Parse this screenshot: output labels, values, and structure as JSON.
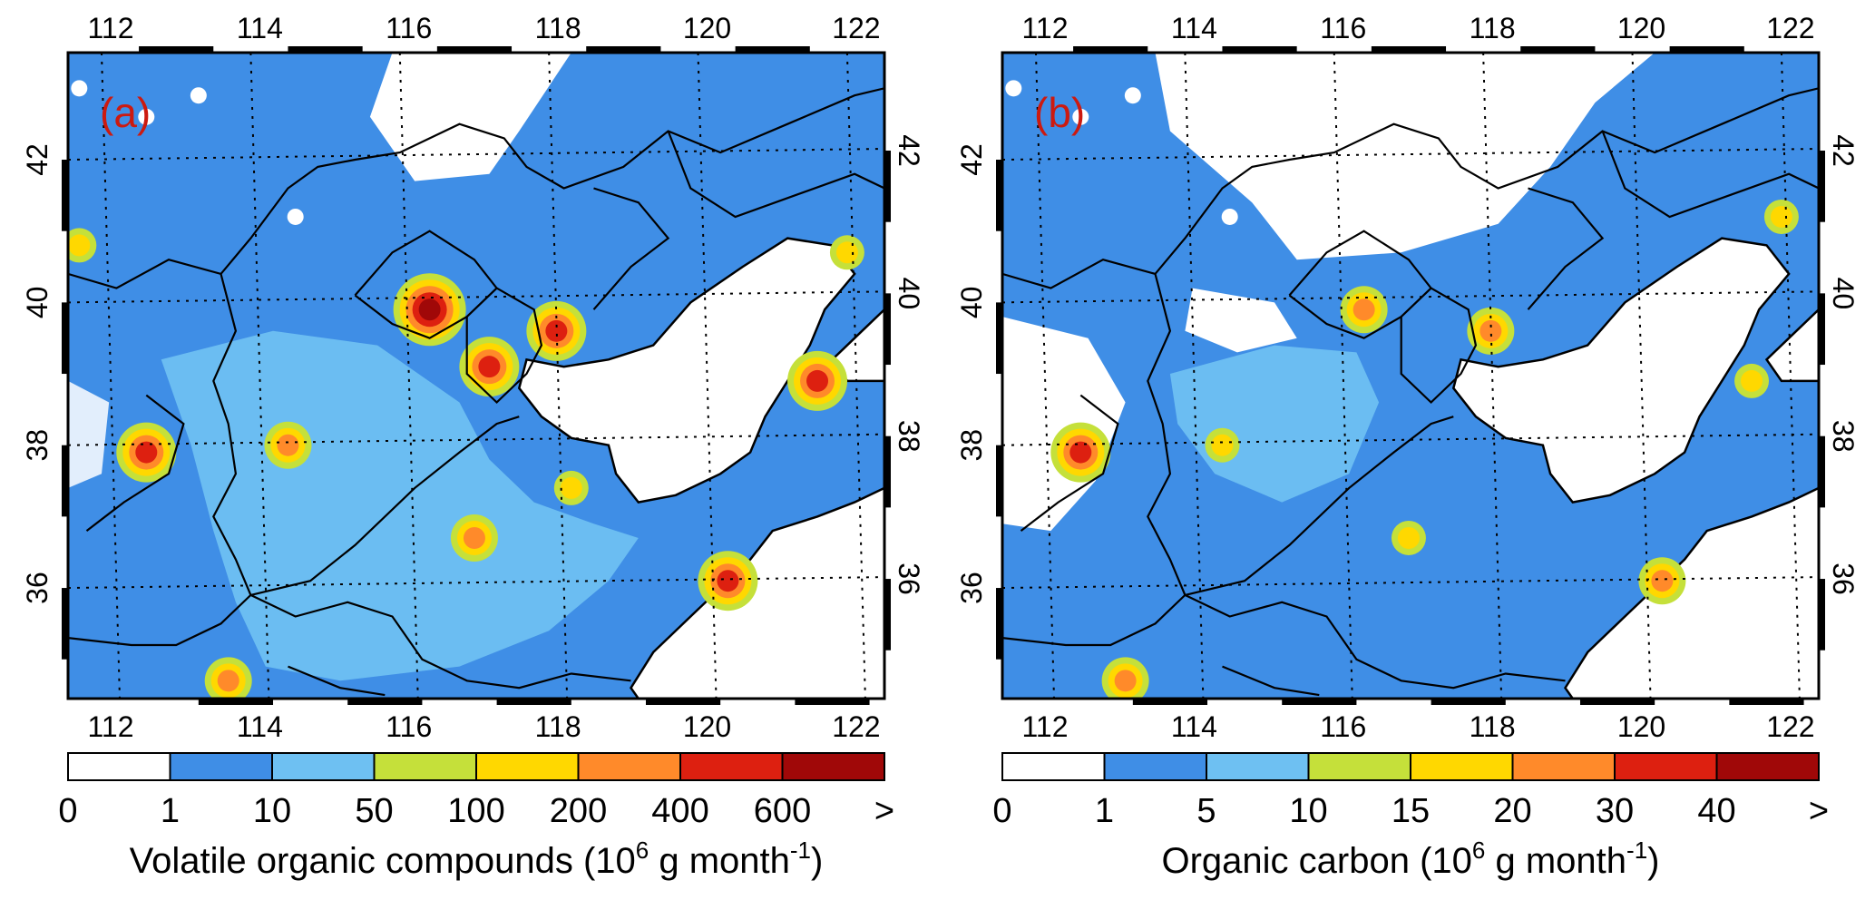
{
  "panels": [
    {
      "label": "(a)",
      "colorbar": {
        "title_main": "Volatile organic compounds (10",
        "title_exp": "6",
        "title_unit": " g month",
        "title_unit_exp": "-1",
        "title_close": ")",
        "labels": [
          "0",
          "1",
          "10",
          "50",
          "100",
          "200",
          "400",
          "600",
          ">"
        ],
        "colors": [
          "#ffffff",
          "#3f8ee6",
          "#6ec0f2",
          "#c5e03a",
          "#ffd800",
          "#ff8a2a",
          "#dd2010",
          "#a00808"
        ]
      },
      "hotspots": [
        {
          "lon": 116.4,
          "lat": 39.9,
          "level": 7
        },
        {
          "lon": 117.2,
          "lat": 39.1,
          "level": 6
        },
        {
          "lon": 118.1,
          "lat": 39.6,
          "level": 6
        },
        {
          "lon": 112.6,
          "lat": 37.9,
          "level": 6
        },
        {
          "lon": 114.5,
          "lat": 38.0,
          "level": 5
        },
        {
          "lon": 120.4,
          "lat": 36.1,
          "level": 6
        },
        {
          "lon": 121.6,
          "lat": 38.9,
          "level": 6
        },
        {
          "lon": 117.0,
          "lat": 36.7,
          "level": 5
        },
        {
          "lon": 113.7,
          "lat": 34.7,
          "level": 5
        },
        {
          "lon": 118.3,
          "lat": 37.4,
          "level": 4
        },
        {
          "lon": 122.0,
          "lat": 40.7,
          "level": 4
        },
        {
          "lon": 111.7,
          "lat": 40.8,
          "level": 4
        }
      ]
    },
    {
      "label": "(b)",
      "colorbar": {
        "title_main": "Organic carbon (10",
        "title_exp": "6",
        "title_unit": " g month",
        "title_unit_exp": "-1",
        "title_close": ")",
        "labels": [
          "0",
          "1",
          "5",
          "10",
          "15",
          "20",
          "30",
          "40",
          ">"
        ],
        "colors": [
          "#ffffff",
          "#3f8ee6",
          "#6ec0f2",
          "#c5e03a",
          "#ffd800",
          "#ff8a2a",
          "#dd2010",
          "#a00808"
        ]
      },
      "hotspots": [
        {
          "lon": 112.6,
          "lat": 37.9,
          "level": 6
        },
        {
          "lon": 116.4,
          "lat": 39.9,
          "level": 5
        },
        {
          "lon": 118.1,
          "lat": 39.6,
          "level": 5
        },
        {
          "lon": 120.4,
          "lat": 36.1,
          "level": 5
        },
        {
          "lon": 117.0,
          "lat": 36.7,
          "level": 4
        },
        {
          "lon": 114.5,
          "lat": 38.0,
          "level": 4
        },
        {
          "lon": 121.6,
          "lat": 38.9,
          "level": 4
        },
        {
          "lon": 113.2,
          "lat": 34.7,
          "level": 5
        },
        {
          "lon": 122.0,
          "lat": 41.2,
          "level": 4
        }
      ]
    }
  ],
  "axes": {
    "lon_ticks": [
      112,
      114,
      116,
      118,
      120,
      122
    ],
    "lat_ticks": [
      36,
      38,
      40,
      42
    ]
  }
}
